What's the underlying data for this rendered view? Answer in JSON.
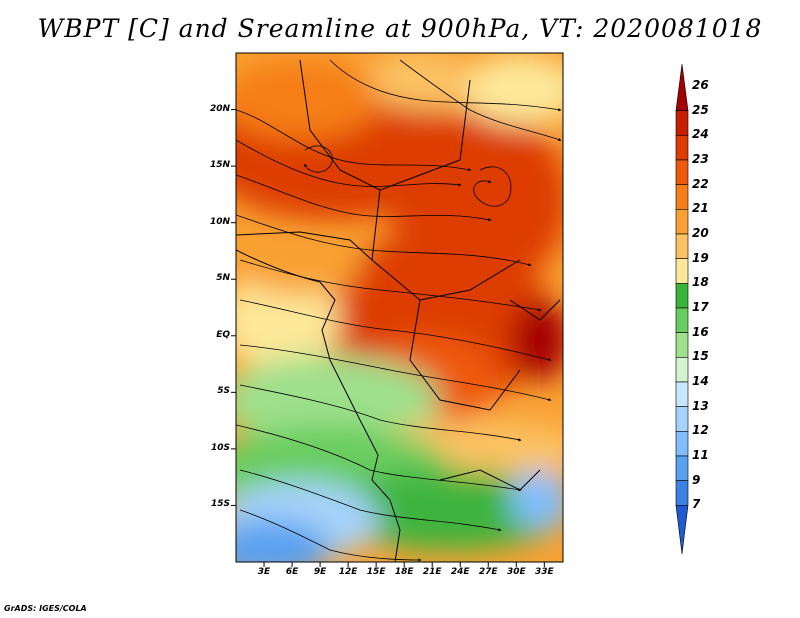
{
  "title": "WBPT [C] and Sreamline at 900hPa, VT: 2020081018",
  "credit": "GrADS: IGES/COLA",
  "map": {
    "lat_range": [
      -20,
      25
    ],
    "lon_range": [
      0,
      35
    ],
    "lat_ticks": [
      "20N",
      "15N",
      "10N",
      "5N",
      "EQ",
      "5S",
      "10S",
      "15S"
    ],
    "lat_tick_values": [
      20,
      15,
      10,
      5,
      0,
      -5,
      -10,
      -15
    ],
    "lon_ticks": [
      "3E",
      "6E",
      "9E",
      "12E",
      "15E",
      "18E",
      "21E",
      "24E",
      "27E",
      "30E",
      "33E"
    ],
    "lon_tick_values": [
      3,
      6,
      9,
      12,
      15,
      18,
      21,
      24,
      27,
      30,
      33
    ]
  },
  "colorbar": {
    "labels": [
      "26",
      "25",
      "24",
      "23",
      "22",
      "21",
      "20",
      "19",
      "18",
      "17",
      "16",
      "15",
      "14",
      "13",
      "12",
      "11",
      "9",
      "7"
    ],
    "colors": [
      "#a50000",
      "#c81e00",
      "#dd3c00",
      "#ee5a0c",
      "#f67e18",
      "#f9a032",
      "#fbc264",
      "#fde89a",
      "#3cb43c",
      "#69cd5f",
      "#9ee08c",
      "#d2f5cd",
      "#c8e6ff",
      "#a5d2fa",
      "#82beff",
      "#5aa0f0",
      "#3c82e6",
      "#1e5ad2"
    ]
  }
}
